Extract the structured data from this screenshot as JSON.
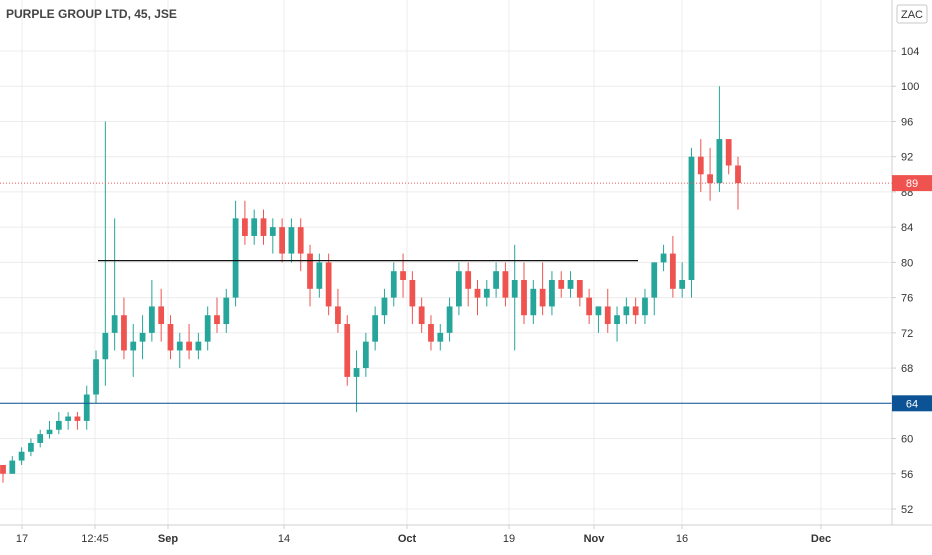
{
  "chart_data": {
    "type": "candlestick",
    "title": "PURPLE GROUP LTD, 45, JSE",
    "currency": "ZAC",
    "ylim": [
      50,
      107
    ],
    "y_ticks": [
      52,
      56,
      60,
      64,
      68,
      72,
      76,
      80,
      84,
      88,
      92,
      96,
      100,
      104
    ],
    "x_tick_labels": [
      {
        "text": "17",
        "bold": false
      },
      {
        "text": "12:45",
        "bold": false
      },
      {
        "text": "Sep",
        "bold": true
      },
      {
        "text": "14",
        "bold": false
      },
      {
        "text": "Oct",
        "bold": true
      },
      {
        "text": "19",
        "bold": false
      },
      {
        "text": "Nov",
        "bold": true
      },
      {
        "text": "16",
        "bold": false
      },
      {
        "text": "Dec",
        "bold": true
      }
    ],
    "grid": true,
    "last_price": {
      "value": 89,
      "label": "89",
      "color": "#ef5350"
    },
    "support_line": {
      "value": 64,
      "label": "64",
      "color": "#0b5394"
    },
    "resistance_line": {
      "value": 80.2,
      "color": "#111111"
    },
    "up_color": "#26a69a",
    "down_color": "#ef5350",
    "candles": [
      [
        57,
        57,
        55,
        56
      ],
      [
        56,
        58,
        56,
        57.5
      ],
      [
        57.5,
        59,
        57,
        58.5
      ],
      [
        58.5,
        60,
        58,
        59.5
      ],
      [
        59.5,
        61,
        59,
        60.5
      ],
      [
        60.5,
        62,
        60,
        61
      ],
      [
        61,
        63,
        60.5,
        62
      ],
      [
        62,
        63,
        61,
        62.5
      ],
      [
        62.5,
        63,
        61,
        62
      ],
      [
        62,
        66,
        61,
        65
      ],
      [
        65,
        70,
        64,
        69
      ],
      [
        69,
        96,
        66,
        72
      ],
      [
        72,
        85,
        70,
        74
      ],
      [
        74,
        76,
        69,
        70
      ],
      [
        70,
        73,
        67,
        71
      ],
      [
        71,
        74,
        69,
        72
      ],
      [
        72,
        78,
        71,
        75
      ],
      [
        75,
        77,
        71,
        73
      ],
      [
        73,
        74,
        69,
        70
      ],
      [
        70,
        72,
        68,
        71
      ],
      [
        71,
        73,
        69,
        70
      ],
      [
        70,
        72,
        69,
        71
      ],
      [
        71,
        75,
        70,
        74
      ],
      [
        74,
        76,
        72,
        73
      ],
      [
        73,
        77,
        72,
        76
      ],
      [
        76,
        87,
        75,
        85
      ],
      [
        85,
        87,
        82,
        83
      ],
      [
        83,
        86,
        82,
        85
      ],
      [
        85,
        86,
        82,
        83
      ],
      [
        83,
        85,
        81,
        84
      ],
      [
        84,
        85,
        80,
        81
      ],
      [
        81,
        85,
        80,
        84
      ],
      [
        84,
        85,
        79,
        81
      ],
      [
        81,
        82,
        75,
        77
      ],
      [
        77,
        81,
        76,
        80
      ],
      [
        80,
        81,
        74,
        75
      ],
      [
        75,
        77,
        72,
        73
      ],
      [
        73,
        74,
        66,
        67
      ],
      [
        67,
        70,
        63,
        68
      ],
      [
        68,
        72,
        67,
        71
      ],
      [
        71,
        75,
        70,
        74
      ],
      [
        74,
        77,
        73,
        76
      ],
      [
        76,
        80,
        75,
        79
      ],
      [
        79,
        81,
        76,
        78
      ],
      [
        78,
        79,
        73,
        75
      ],
      [
        75,
        76,
        72,
        73
      ],
      [
        73,
        74,
        70,
        71
      ],
      [
        71,
        73,
        70,
        72
      ],
      [
        72,
        76,
        71,
        75
      ],
      [
        75,
        80,
        74,
        79
      ],
      [
        79,
        80,
        75,
        77
      ],
      [
        77,
        78,
        74,
        76
      ],
      [
        76,
        78,
        75,
        77
      ],
      [
        77,
        80,
        76,
        79
      ],
      [
        79,
        80,
        75,
        76
      ],
      [
        76,
        82,
        70,
        78
      ],
      [
        78,
        80,
        73,
        74
      ],
      [
        74,
        78,
        73,
        77
      ],
      [
        77,
        80,
        74,
        75
      ],
      [
        75,
        79,
        74,
        78
      ],
      [
        78,
        79,
        76,
        77
      ],
      [
        77,
        79,
        76,
        78
      ],
      [
        78,
        78,
        75,
        76
      ],
      [
        76,
        77,
        73,
        74
      ],
      [
        74,
        75,
        72,
        75
      ],
      [
        75,
        77,
        72,
        73
      ],
      [
        73,
        75,
        71,
        74
      ],
      [
        74,
        76,
        73,
        75
      ],
      [
        75,
        76,
        73,
        74
      ],
      [
        74,
        77,
        73,
        76
      ],
      [
        76,
        80,
        74,
        80
      ],
      [
        80,
        82,
        79,
        81
      ],
      [
        81,
        83,
        76,
        77
      ],
      [
        77,
        80,
        76,
        78
      ],
      [
        78,
        93,
        76,
        92
      ],
      [
        92,
        94,
        88,
        90
      ],
      [
        90,
        93,
        87,
        89
      ],
      [
        89,
        100,
        88,
        94
      ],
      [
        94,
        94,
        90,
        91
      ],
      [
        91,
        92,
        86,
        89
      ]
    ]
  }
}
